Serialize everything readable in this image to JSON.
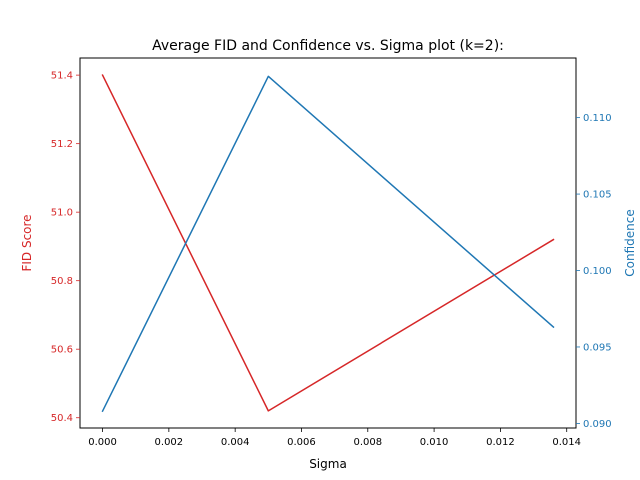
{
  "chart_data": {
    "type": "line",
    "title": "Average FID and Confidence vs. Sigma plot (k=2):",
    "xlabel": "Sigma",
    "ylabel_left": "FID Score",
    "ylabel_right": "Confidence",
    "xlim": [
      -0.00068,
      0.01428
    ],
    "ylim_left": [
      50.37,
      51.45
    ],
    "ylim_right": [
      0.0897,
      0.1139
    ],
    "x_ticks": [
      "0.000",
      "0.002",
      "0.004",
      "0.006",
      "0.008",
      "0.010",
      "0.012",
      "0.014"
    ],
    "left_ticks": [
      "50.4",
      "50.6",
      "50.8",
      "51.0",
      "51.2",
      "51.4"
    ],
    "right_ticks": [
      "0.090",
      "0.095",
      "0.100",
      "0.105",
      "0.110"
    ],
    "grid": false,
    "series": [
      {
        "axis": "left",
        "color": "#d62728",
        "x": [
          0.0,
          0.005,
          0.0136
        ],
        "y": [
          51.4,
          50.42,
          50.92
        ]
      },
      {
        "axis": "right",
        "color": "#1f77b4",
        "x": [
          0.0,
          0.005,
          0.0136
        ],
        "y": [
          0.0908,
          0.1127,
          0.0963
        ]
      }
    ]
  }
}
